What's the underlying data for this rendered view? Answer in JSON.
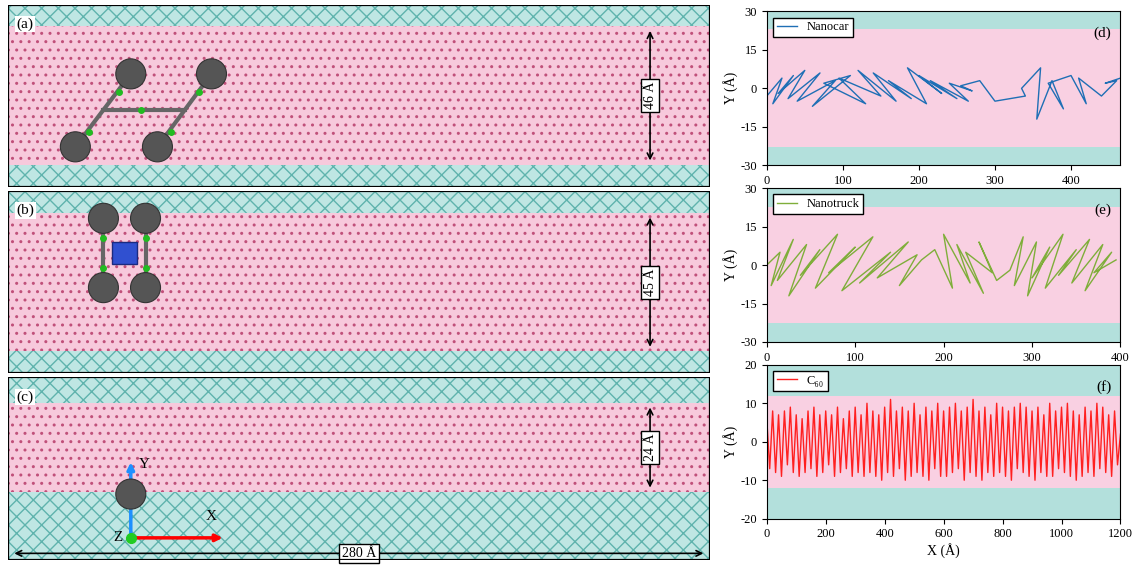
{
  "panels": [
    {
      "label": "(a)",
      "width_label": "46 Å"
    },
    {
      "label": "(b)",
      "width_label": "45 Å"
    },
    {
      "label": "(c)",
      "width_label": "24 Å",
      "length_label": "280 Å",
      "axis_labels": [
        "X",
        "Y",
        "Z"
      ]
    }
  ],
  "chart_data": [
    {
      "type": "line",
      "annotations": [
        "(d)"
      ],
      "ylabel": "Y (Å)",
      "legend": "upper left",
      "xlim": [
        0,
        465
      ],
      "xticks": [
        0,
        100,
        200,
        300,
        400
      ],
      "ylim": [
        -30,
        30
      ],
      "yticks": [
        -30,
        -15,
        0,
        15,
        30
      ],
      "bands": [
        {
          "from": -30,
          "to": -23,
          "color": "#b3e0dc"
        },
        {
          "from": -23,
          "to": 23,
          "color": "#f9d0e2"
        },
        {
          "from": 23,
          "to": 30,
          "color": "#b3e0dc"
        }
      ],
      "series": [
        {
          "name": "Nanocar",
          "color": "#1f6fb5",
          "x": [
            0,
            20,
            8,
            35,
            15,
            50,
            28,
            70,
            40,
            90,
            60,
            110,
            75,
            130,
            95,
            150,
            120,
            170,
            140,
            190,
            160,
            210,
            185,
            230,
            200,
            250,
            215,
            265,
            240,
            270,
            255,
            280,
            300,
            320,
            340,
            335,
            360,
            355,
            375,
            390,
            370,
            400,
            420,
            410,
            440,
            460,
            445,
            465
          ],
          "values": [
            -3,
            4,
            -6,
            5,
            -2,
            7,
            -4,
            6,
            -5,
            3,
            -7,
            5,
            2,
            -6,
            4,
            -3,
            7,
            -5,
            6,
            -4,
            3,
            -6,
            8,
            -2,
            5,
            -4,
            3,
            -5,
            2,
            -1,
            1,
            3,
            -5,
            -4,
            -3,
            0,
            8,
            -12,
            3,
            -8,
            2,
            5,
            -6,
            4,
            -3,
            3,
            2,
            4
          ]
        }
      ]
    },
    {
      "type": "line",
      "annotations": [
        "(e)"
      ],
      "ylabel": "Y (Å)",
      "legend": "upper left",
      "xlim": [
        0,
        400
      ],
      "xticks": [
        0,
        100,
        200,
        300,
        400
      ],
      "ylim": [
        -30,
        30
      ],
      "yticks": [
        -30,
        -15,
        0,
        15,
        30
      ],
      "bands": [
        {
          "from": -30,
          "to": -22.5,
          "color": "#b3e0dc"
        },
        {
          "from": -22.5,
          "to": 22.5,
          "color": "#f9d0e2"
        },
        {
          "from": 22.5,
          "to": 30,
          "color": "#b3e0dc"
        }
      ],
      "series": [
        {
          "name": "Nanotruck",
          "color": "#7fae3a",
          "x": [
            0,
            15,
            5,
            30,
            12,
            45,
            25,
            60,
            38,
            80,
            55,
            100,
            70,
            120,
            85,
            140,
            105,
            160,
            125,
            170,
            150,
            175,
            190,
            210,
            200,
            230,
            215,
            245,
            225,
            255,
            240,
            260,
            275,
            290,
            280,
            305,
            295,
            320,
            300,
            335,
            315,
            350,
            330,
            365,
            345,
            380,
            360,
            390,
            370,
            395
          ],
          "values": [
            0,
            5,
            -8,
            10,
            -6,
            8,
            -12,
            6,
            -4,
            12,
            -9,
            7,
            -3,
            11,
            -10,
            5,
            -7,
            9,
            -5,
            4,
            -8,
            2,
            6,
            -9,
            12,
            -7,
            8,
            -11,
            5,
            -3,
            9,
            -6,
            -2,
            11,
            -8,
            9,
            -12,
            7,
            -5,
            12,
            -9,
            6,
            -4,
            10,
            -7,
            8,
            -10,
            5,
            -3,
            2
          ]
        }
      ]
    },
    {
      "type": "line",
      "annotations": [
        "(f)"
      ],
      "xlabel": "X (Å)",
      "ylabel": "Y (Å)",
      "legend": "upper left",
      "xlim": [
        0,
        1200
      ],
      "xticks": [
        0,
        200,
        400,
        600,
        800,
        1000,
        1200
      ],
      "ylim": [
        -20,
        20
      ],
      "yticks": [
        -20,
        -10,
        0,
        10,
        20
      ],
      "bands": [
        {
          "from": -20,
          "to": -12,
          "color": "#b3e0dc"
        },
        {
          "from": -12,
          "to": 12,
          "color": "#f9d0e2"
        },
        {
          "from": 12,
          "to": 20,
          "color": "#b3e0dc"
        }
      ],
      "series": [
        {
          "name": "C₆₀",
          "color": "#ff2020",
          "x": [
            0,
            10,
            20,
            30,
            40,
            50,
            60,
            70,
            80,
            90,
            100,
            110,
            120,
            130,
            140,
            150,
            160,
            170,
            180,
            190,
            200,
            210,
            220,
            230,
            240,
            250,
            260,
            270,
            280,
            290,
            300,
            310,
            320,
            330,
            340,
            350,
            360,
            370,
            380,
            390,
            400,
            410,
            420,
            430,
            440,
            450,
            460,
            470,
            480,
            490,
            500,
            510,
            520,
            530,
            540,
            550,
            560,
            570,
            580,
            590,
            600,
            610,
            620,
            630,
            640,
            650,
            660,
            670,
            680,
            690,
            700,
            710,
            720,
            730,
            740,
            750,
            760,
            770,
            780,
            790,
            800,
            810,
            820,
            830,
            840,
            850,
            860,
            870,
            880,
            890,
            900,
            910,
            920,
            930,
            940,
            950,
            960,
            970,
            980,
            990,
            1000,
            1010,
            1020,
            1030,
            1040,
            1050,
            1060,
            1070,
            1080,
            1090,
            1100,
            1110,
            1120,
            1130,
            1140,
            1150,
            1160,
            1170,
            1180,
            1190,
            1200
          ],
          "values": [
            6,
            -7,
            8,
            -8,
            7,
            -9,
            8,
            -6,
            9,
            -8,
            7,
            -9,
            6,
            -8,
            8,
            -7,
            9,
            -9,
            7,
            -8,
            8,
            -6,
            7,
            -9,
            9,
            -8,
            6,
            -7,
            8,
            -9,
            9,
            -8,
            7,
            -9,
            10,
            -8,
            8,
            -9,
            7,
            -10,
            9,
            -8,
            11,
            -9,
            8,
            -7,
            9,
            -10,
            8,
            -9,
            10,
            -8,
            7,
            -9,
            9,
            -10,
            8,
            -7,
            10,
            -9,
            8,
            -9,
            9,
            -8,
            10,
            -7,
            8,
            -10,
            9,
            -8,
            11,
            -9,
            8,
            -10,
            9,
            -8,
            7,
            -9,
            10,
            -8,
            9,
            -9,
            8,
            -10,
            9,
            -7,
            10,
            -8,
            9,
            -9,
            8,
            -10,
            9,
            -8,
            7,
            -9,
            10,
            -9,
            8,
            -7,
            9,
            -8,
            10,
            -9,
            8,
            -10,
            7,
            -9,
            9,
            -8,
            8,
            -9,
            10,
            -7,
            9,
            -8,
            7,
            -9,
            8,
            -6,
            2
          ]
        }
      ]
    }
  ]
}
